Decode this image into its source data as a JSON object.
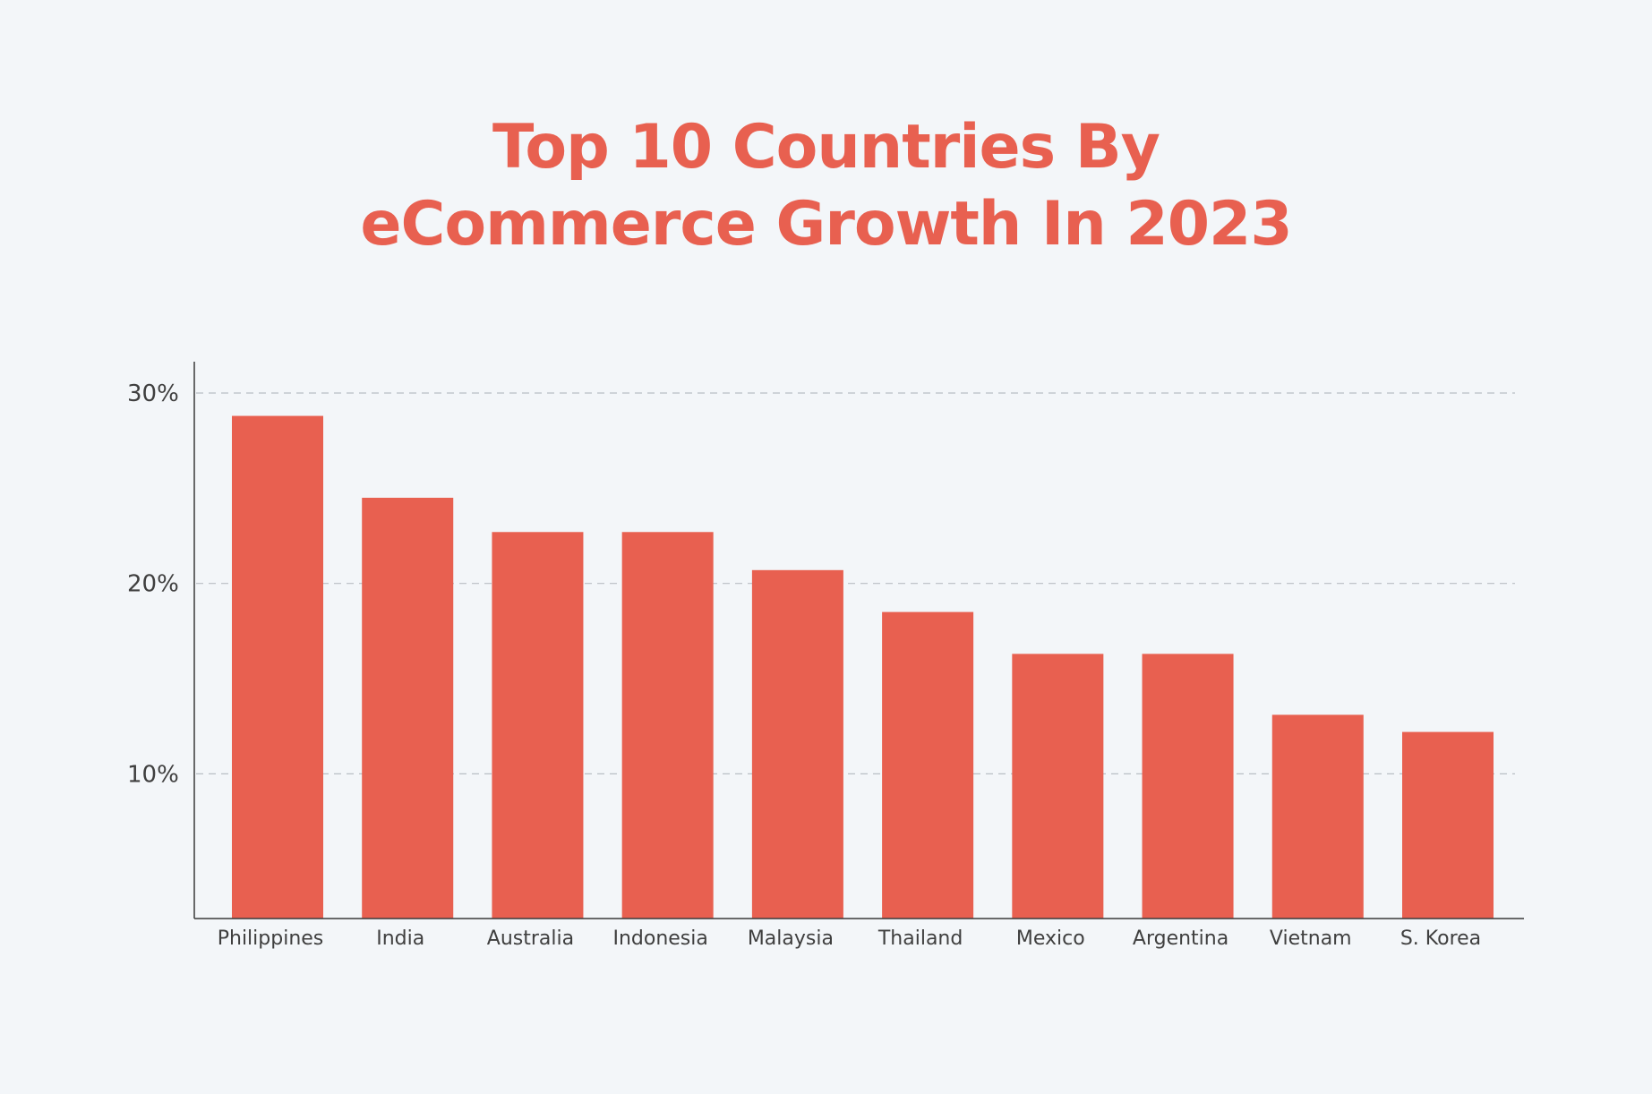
{
  "colors": {
    "background": "#f3f6f9",
    "bar": "#e86050",
    "title": "#e86050",
    "axis": "#3a3a3a",
    "grid": "#b9bec4",
    "label": "#3f3f3f"
  },
  "chart_data": {
    "type": "bar",
    "title_lines": [
      "Top 10 Countries By",
      "eCommerce Growth In 2023"
    ],
    "xlabel": "",
    "ylabel": "",
    "categories": [
      "Philippines",
      "India",
      "Australia",
      "Indonesia",
      "Malaysia",
      "Thailand",
      "Mexico",
      "Argentina",
      "Vietnam",
      "S. Korea"
    ],
    "values": [
      28.8,
      24.5,
      22.7,
      22.7,
      20.7,
      18.5,
      16.3,
      16.3,
      13.1,
      12.2
    ],
    "y_ticks": [
      {
        "value": 10,
        "label": "10%"
      },
      {
        "value": 20,
        "label": "20%"
      },
      {
        "value": 30,
        "label": "30%"
      }
    ],
    "ylim": [
      2.4,
      31.6
    ],
    "grid": "horizontal dashed"
  }
}
